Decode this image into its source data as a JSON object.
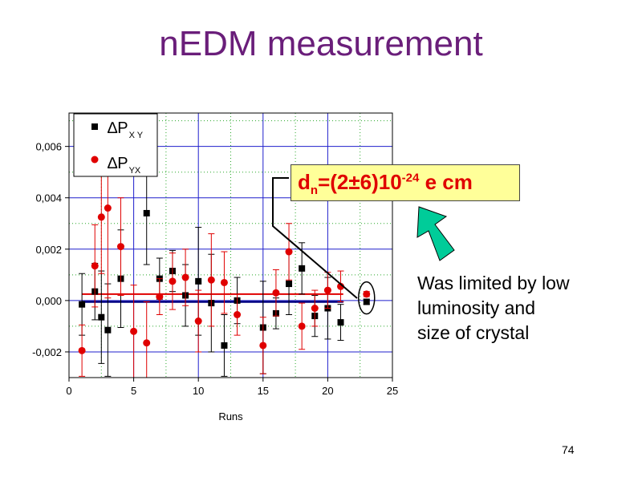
{
  "slide": {
    "title": "nEDM measurement",
    "page_number": "74",
    "result": {
      "sym_d": "d",
      "sub_n": "n",
      "mid": "=(2±6)10",
      "exp": "-24",
      "unit": " e cm"
    },
    "note_lines": [
      "Was limited by low",
      "luminosity and",
      "size of crystal"
    ]
  },
  "chart_data": {
    "type": "scatter",
    "xlabel": "Runs",
    "ylabel": "",
    "xlim": [
      0,
      25
    ],
    "ylim": [
      -0.003,
      0.0073
    ],
    "x_ticks": [
      0,
      5,
      10,
      15,
      20,
      25
    ],
    "x_tick_labels": [
      "0",
      "5",
      "10",
      "15",
      "20",
      "25"
    ],
    "y_ticks": [
      -0.002,
      0.0,
      0.002,
      0.004,
      0.006
    ],
    "y_tick_labels": [
      "-0,002",
      "0,000",
      "0,002",
      "0,004",
      "0,006"
    ],
    "grid": true,
    "legend_position": "top-left",
    "legend": [
      {
        "symbol": "∆P",
        "sub": "X Y"
      },
      {
        "symbol": "∆P",
        "sub": "YX"
      }
    ],
    "series": [
      {
        "marker": "square",
        "color": "#000000",
        "fit_value": -5e-05,
        "points": [
          {
            "x": 1,
            "y": -0.00015,
            "err": 0.0012
          },
          {
            "x": 2,
            "y": 0.00035,
            "err": 0.0011
          },
          {
            "x": 2.5,
            "y": -0.00065,
            "err": 0.0018
          },
          {
            "x": 3,
            "y": -0.00115,
            "err": 0.0018
          },
          {
            "x": 4,
            "y": 0.00085,
            "err": 0.0019
          },
          {
            "x": 6,
            "y": 0.0034,
            "err": 0.002
          },
          {
            "x": 7,
            "y": 0.00085,
            "err": 0.0008
          },
          {
            "x": 8,
            "y": 0.00115,
            "err": 0.0008
          },
          {
            "x": 9,
            "y": 0.0002,
            "err": 0.0012
          },
          {
            "x": 10,
            "y": 0.00075,
            "err": 0.0021
          },
          {
            "x": 11,
            "y": -0.0001,
            "err": 0.0019
          },
          {
            "x": 12,
            "y": -0.00175,
            "err": 0.0012
          },
          {
            "x": 13,
            "y": 0.0,
            "err": 0.0009
          },
          {
            "x": 15,
            "y": -0.00105,
            "err": 0.0018
          },
          {
            "x": 16,
            "y": -0.0005,
            "err": 0.0006
          },
          {
            "x": 17,
            "y": 0.00065,
            "err": 0.0012
          },
          {
            "x": 18,
            "y": 0.00125,
            "err": 0.001
          },
          {
            "x": 19,
            "y": -0.0006,
            "err": 0.0008
          },
          {
            "x": 20,
            "y": -0.0003,
            "err": 0.0012
          },
          {
            "x": 21,
            "y": -0.00085,
            "err": 0.0007
          },
          {
            "x": 23,
            "y": -5e-05,
            "err": 0.0001
          }
        ]
      },
      {
        "marker": "circle",
        "color": "#e00000",
        "fit_value": 0.00025,
        "points": [
          {
            "x": 1,
            "y": -0.00195,
            "err": 0.001
          },
          {
            "x": 2,
            "y": 0.00135,
            "err": 0.0016
          },
          {
            "x": 2.5,
            "y": 0.00325,
            "err": 0.0022
          },
          {
            "x": 3,
            "y": 0.0036,
            "err": 0.0035
          },
          {
            "x": 4,
            "y": 0.0021,
            "err": 0.0019
          },
          {
            "x": 5,
            "y": -0.0012,
            "err": 0.0018
          },
          {
            "x": 6,
            "y": -0.00165,
            "err": 0.0016
          },
          {
            "x": 7,
            "y": 0.00015,
            "err": 0.0007
          },
          {
            "x": 8,
            "y": 0.00075,
            "err": 0.0011
          },
          {
            "x": 9,
            "y": 0.0009,
            "err": 0.0011
          },
          {
            "x": 10,
            "y": -0.0008,
            "err": 0.0012
          },
          {
            "x": 11,
            "y": 0.0008,
            "err": 0.0018
          },
          {
            "x": 12,
            "y": 0.0007,
            "err": 0.0012
          },
          {
            "x": 13,
            "y": -0.00055,
            "err": 0.0008
          },
          {
            "x": 15,
            "y": -0.00175,
            "err": 0.0011
          },
          {
            "x": 16,
            "y": 0.0003,
            "err": 0.0009
          },
          {
            "x": 17,
            "y": 0.0019,
            "err": 0.0011
          },
          {
            "x": 18,
            "y": -0.001,
            "err": 0.0009
          },
          {
            "x": 19,
            "y": -0.0003,
            "err": 0.0007
          },
          {
            "x": 20,
            "y": 0.0004,
            "err": 0.0007
          },
          {
            "x": 21,
            "y": 0.00055,
            "err": 0.0006
          },
          {
            "x": 23,
            "y": 0.00025,
            "err": 0.0001
          }
        ]
      }
    ]
  },
  "colors": {
    "title": "#6a1e7a",
    "result_text": "#e00000",
    "result_bg": "#ffff99",
    "arrow": "#00cc99",
    "grid_major": "#1f1fcc",
    "grid_minor": "#2aa82a"
  }
}
